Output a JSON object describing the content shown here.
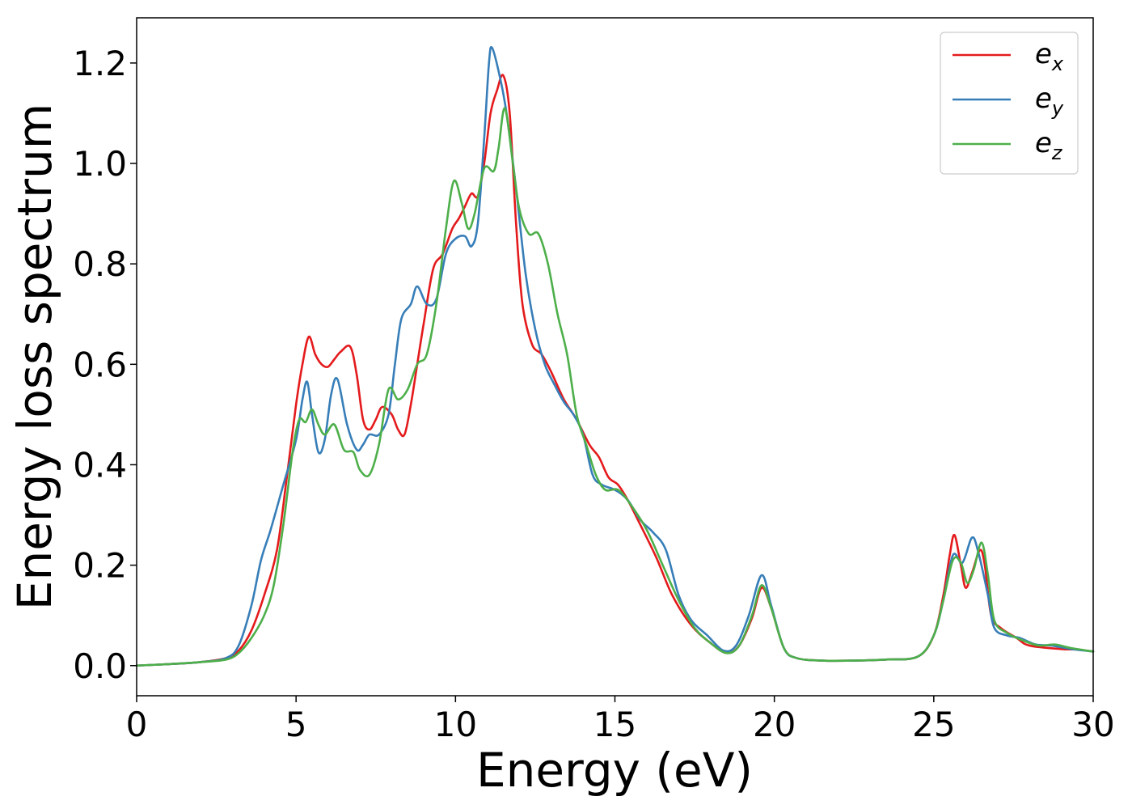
{
  "chart_data": {
    "type": "line",
    "xlabel": "Energy (eV)",
    "ylabel": "Energy loss spectrum",
    "xlim": [
      0,
      30
    ],
    "ylim": [
      -0.06,
      1.29
    ],
    "x_ticks": [
      "0",
      "5",
      "10",
      "15",
      "20",
      "25",
      "30"
    ],
    "y_ticks": [
      "0.0",
      "0.2",
      "0.4",
      "0.6",
      "0.8",
      "1.0",
      "1.2"
    ],
    "grid": false,
    "legend_position": "top-right",
    "series": [
      {
        "name": "e_x",
        "label_base": "e",
        "label_sub": "x",
        "color": "#e41a1c",
        "points": [
          [
            0,
            0
          ],
          [
            1,
            0.003
          ],
          [
            2,
            0.007
          ],
          [
            2.8,
            0.015
          ],
          [
            3.2,
            0.03
          ],
          [
            3.6,
            0.07
          ],
          [
            4,
            0.14
          ],
          [
            4.4,
            0.23
          ],
          [
            4.7,
            0.37
          ],
          [
            5,
            0.52
          ],
          [
            5.2,
            0.6
          ],
          [
            5.4,
            0.655
          ],
          [
            5.6,
            0.62
          ],
          [
            5.8,
            0.6
          ],
          [
            6,
            0.595
          ],
          [
            6.2,
            0.61
          ],
          [
            6.4,
            0.625
          ],
          [
            6.7,
            0.635
          ],
          [
            6.9,
            0.58
          ],
          [
            7.1,
            0.49
          ],
          [
            7.3,
            0.47
          ],
          [
            7.5,
            0.49
          ],
          [
            7.7,
            0.515
          ],
          [
            8,
            0.5
          ],
          [
            8.2,
            0.47
          ],
          [
            8.4,
            0.46
          ],
          [
            8.6,
            0.52
          ],
          [
            8.8,
            0.6
          ],
          [
            9,
            0.68
          ],
          [
            9.3,
            0.79
          ],
          [
            9.6,
            0.82
          ],
          [
            9.9,
            0.87
          ],
          [
            10.1,
            0.89
          ],
          [
            10.3,
            0.915
          ],
          [
            10.5,
            0.94
          ],
          [
            10.7,
            0.935
          ],
          [
            10.9,
            1.0
          ],
          [
            11.1,
            1.1
          ],
          [
            11.3,
            1.145
          ],
          [
            11.5,
            1.175
          ],
          [
            11.7,
            1.1
          ],
          [
            11.9,
            0.88
          ],
          [
            12.1,
            0.72
          ],
          [
            12.4,
            0.64
          ],
          [
            12.7,
            0.62
          ],
          [
            13,
            0.585
          ],
          [
            13.4,
            0.53
          ],
          [
            13.8,
            0.49
          ],
          [
            14.2,
            0.44
          ],
          [
            14.5,
            0.415
          ],
          [
            14.8,
            0.375
          ],
          [
            15.1,
            0.36
          ],
          [
            15.4,
            0.33
          ],
          [
            15.8,
            0.28
          ],
          [
            16.3,
            0.215
          ],
          [
            16.8,
            0.14
          ],
          [
            17.4,
            0.08
          ],
          [
            18,
            0.045
          ],
          [
            18.5,
            0.025
          ],
          [
            18.9,
            0.04
          ],
          [
            19.3,
            0.095
          ],
          [
            19.6,
            0.155
          ],
          [
            19.9,
            0.115
          ],
          [
            20.3,
            0.035
          ],
          [
            20.7,
            0.015
          ],
          [
            21.5,
            0.01
          ],
          [
            22.5,
            0.01
          ],
          [
            23.5,
            0.012
          ],
          [
            24.5,
            0.018
          ],
          [
            25,
            0.06
          ],
          [
            25.3,
            0.14
          ],
          [
            25.5,
            0.22
          ],
          [
            25.65,
            0.26
          ],
          [
            25.85,
            0.2
          ],
          [
            26,
            0.155
          ],
          [
            26.2,
            0.185
          ],
          [
            26.45,
            0.23
          ],
          [
            26.6,
            0.2
          ],
          [
            26.8,
            0.1
          ],
          [
            27.1,
            0.075
          ],
          [
            27.6,
            0.055
          ],
          [
            28,
            0.04
          ],
          [
            29,
            0.033
          ],
          [
            29.5,
            0.032
          ],
          [
            30,
            0.028
          ]
        ]
      },
      {
        "name": "e_y",
        "label_base": "e",
        "label_sub": "y",
        "color": "#377eb8",
        "points": [
          [
            0,
            0
          ],
          [
            1,
            0.003
          ],
          [
            2,
            0.007
          ],
          [
            2.8,
            0.015
          ],
          [
            3.2,
            0.04
          ],
          [
            3.6,
            0.12
          ],
          [
            3.9,
            0.21
          ],
          [
            4.2,
            0.27
          ],
          [
            4.6,
            0.36
          ],
          [
            5,
            0.45
          ],
          [
            5.2,
            0.53
          ],
          [
            5.35,
            0.565
          ],
          [
            5.5,
            0.5
          ],
          [
            5.7,
            0.425
          ],
          [
            5.9,
            0.45
          ],
          [
            6.1,
            0.54
          ],
          [
            6.3,
            0.57
          ],
          [
            6.6,
            0.48
          ],
          [
            6.9,
            0.43
          ],
          [
            7.1,
            0.44
          ],
          [
            7.3,
            0.46
          ],
          [
            7.6,
            0.46
          ],
          [
            7.9,
            0.5
          ],
          [
            8.1,
            0.6
          ],
          [
            8.3,
            0.69
          ],
          [
            8.6,
            0.72
          ],
          [
            8.8,
            0.755
          ],
          [
            9.1,
            0.72
          ],
          [
            9.4,
            0.73
          ],
          [
            9.7,
            0.82
          ],
          [
            10,
            0.85
          ],
          [
            10.3,
            0.855
          ],
          [
            10.5,
            0.835
          ],
          [
            10.7,
            0.88
          ],
          [
            10.9,
            1.05
          ],
          [
            11.05,
            1.2
          ],
          [
            11.15,
            1.23
          ],
          [
            11.4,
            1.17
          ],
          [
            11.6,
            1.1
          ],
          [
            11.9,
            0.95
          ],
          [
            12.2,
            0.78
          ],
          [
            12.5,
            0.67
          ],
          [
            12.8,
            0.6
          ],
          [
            13.1,
            0.56
          ],
          [
            13.4,
            0.525
          ],
          [
            13.7,
            0.5
          ],
          [
            14,
            0.46
          ],
          [
            14.3,
            0.38
          ],
          [
            14.6,
            0.36
          ],
          [
            15,
            0.35
          ],
          [
            15.4,
            0.33
          ],
          [
            15.8,
            0.29
          ],
          [
            16.2,
            0.265
          ],
          [
            16.6,
            0.23
          ],
          [
            17,
            0.14
          ],
          [
            17.4,
            0.09
          ],
          [
            17.9,
            0.06
          ],
          [
            18.4,
            0.03
          ],
          [
            18.8,
            0.04
          ],
          [
            19.2,
            0.1
          ],
          [
            19.6,
            0.18
          ],
          [
            19.9,
            0.12
          ],
          [
            20.3,
            0.035
          ],
          [
            20.7,
            0.015
          ],
          [
            21.5,
            0.01
          ],
          [
            22.5,
            0.01
          ],
          [
            23.5,
            0.012
          ],
          [
            24.5,
            0.018
          ],
          [
            25,
            0.06
          ],
          [
            25.3,
            0.13
          ],
          [
            25.6,
            0.22
          ],
          [
            25.9,
            0.205
          ],
          [
            26.2,
            0.255
          ],
          [
            26.4,
            0.225
          ],
          [
            26.7,
            0.14
          ],
          [
            26.9,
            0.075
          ],
          [
            27.3,
            0.06
          ],
          [
            27.7,
            0.055
          ],
          [
            28.2,
            0.042
          ],
          [
            28.7,
            0.04
          ],
          [
            29.3,
            0.033
          ],
          [
            30,
            0.028
          ]
        ]
      },
      {
        "name": "e_z",
        "label_base": "e",
        "label_sub": "z",
        "color": "#4daf4a",
        "points": [
          [
            0,
            0
          ],
          [
            1,
            0.003
          ],
          [
            2,
            0.007
          ],
          [
            2.8,
            0.012
          ],
          [
            3.2,
            0.025
          ],
          [
            3.6,
            0.055
          ],
          [
            4,
            0.1
          ],
          [
            4.3,
            0.16
          ],
          [
            4.6,
            0.28
          ],
          [
            4.9,
            0.43
          ],
          [
            5.1,
            0.49
          ],
          [
            5.3,
            0.485
          ],
          [
            5.5,
            0.51
          ],
          [
            5.7,
            0.48
          ],
          [
            5.9,
            0.46
          ],
          [
            6.2,
            0.48
          ],
          [
            6.5,
            0.43
          ],
          [
            6.8,
            0.425
          ],
          [
            7,
            0.39
          ],
          [
            7.3,
            0.38
          ],
          [
            7.6,
            0.44
          ],
          [
            7.9,
            0.55
          ],
          [
            8.2,
            0.53
          ],
          [
            8.5,
            0.55
          ],
          [
            8.8,
            0.6
          ],
          [
            9.1,
            0.62
          ],
          [
            9.4,
            0.72
          ],
          [
            9.7,
            0.87
          ],
          [
            9.95,
            0.965
          ],
          [
            10.2,
            0.92
          ],
          [
            10.4,
            0.87
          ],
          [
            10.6,
            0.9
          ],
          [
            10.9,
            0.99
          ],
          [
            11.2,
            0.985
          ],
          [
            11.35,
            1.03
          ],
          [
            11.55,
            1.11
          ],
          [
            11.8,
            1.0
          ],
          [
            12.0,
            0.91
          ],
          [
            12.3,
            0.86
          ],
          [
            12.6,
            0.86
          ],
          [
            12.9,
            0.8
          ],
          [
            13.2,
            0.7
          ],
          [
            13.5,
            0.62
          ],
          [
            13.8,
            0.5
          ],
          [
            14.1,
            0.44
          ],
          [
            14.4,
            0.38
          ],
          [
            14.7,
            0.35
          ],
          [
            15.1,
            0.35
          ],
          [
            15.5,
            0.32
          ],
          [
            16,
            0.27
          ],
          [
            16.5,
            0.2
          ],
          [
            17,
            0.13
          ],
          [
            17.5,
            0.075
          ],
          [
            18,
            0.045
          ],
          [
            18.5,
            0.025
          ],
          [
            18.9,
            0.04
          ],
          [
            19.3,
            0.1
          ],
          [
            19.6,
            0.16
          ],
          [
            19.9,
            0.115
          ],
          [
            20.3,
            0.035
          ],
          [
            20.7,
            0.015
          ],
          [
            21.5,
            0.01
          ],
          [
            22.5,
            0.01
          ],
          [
            23.5,
            0.012
          ],
          [
            24.5,
            0.018
          ],
          [
            25,
            0.06
          ],
          [
            25.3,
            0.13
          ],
          [
            25.6,
            0.21
          ],
          [
            25.85,
            0.205
          ],
          [
            26.05,
            0.165
          ],
          [
            26.25,
            0.19
          ],
          [
            26.5,
            0.245
          ],
          [
            26.7,
            0.18
          ],
          [
            26.9,
            0.09
          ],
          [
            27.3,
            0.065
          ],
          [
            27.8,
            0.05
          ],
          [
            28.3,
            0.04
          ],
          [
            28.8,
            0.042
          ],
          [
            29.3,
            0.035
          ],
          [
            30,
            0.028
          ]
        ]
      }
    ]
  }
}
